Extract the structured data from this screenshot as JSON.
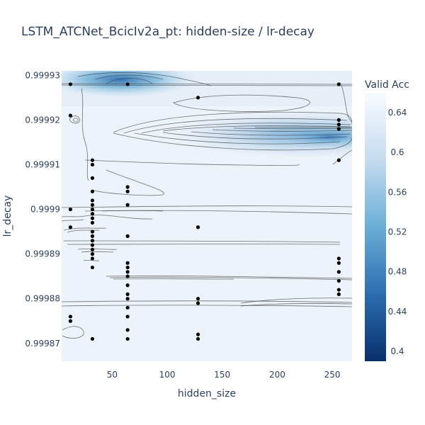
{
  "chart_data": {
    "type": "contour",
    "title": "LSTM_ATCNet_BcicIv2a_pt: hidden-size / lr-decay",
    "xlabel": "hidden_size",
    "ylabel": "lr_decay",
    "colorbar_title": "Valid Acc",
    "xlim": [
      4,
      268
    ],
    "ylim": [
      0.999866,
      0.999931
    ],
    "x_ticks": [
      50,
      100,
      150,
      200,
      250
    ],
    "y_ticks": [
      0.99987,
      0.99988,
      0.99989,
      0.9999,
      0.99991,
      0.99992,
      0.99993
    ],
    "y_tick_labels": [
      "0.99987",
      "0.99988",
      "0.99989",
      "0.9999",
      "0.99991",
      "0.99992",
      "0.99993"
    ],
    "colorbar_range": [
      0.39,
      0.66
    ],
    "colorbar_ticks": [
      0.4,
      0.44,
      0.48,
      0.52,
      0.56,
      0.6,
      0.64
    ],
    "colorscale": [
      "#08306b",
      "#2c6eb0",
      "#6aaed6",
      "#c6dbef",
      "#f7fbff"
    ],
    "grid": false,
    "points": [
      {
        "x": 12,
        "y": 0.999928
      },
      {
        "x": 12,
        "y": 0.999921
      },
      {
        "x": 12,
        "y": 0.9999
      },
      {
        "x": 12,
        "y": 0.999896
      },
      {
        "x": 12,
        "y": 0.999876
      },
      {
        "x": 12,
        "y": 0.999875
      },
      {
        "x": 32,
        "y": 0.999911
      },
      {
        "x": 32,
        "y": 0.99991
      },
      {
        "x": 32,
        "y": 0.999907
      },
      {
        "x": 32,
        "y": 0.999904
      },
      {
        "x": 32,
        "y": 0.999902
      },
      {
        "x": 32,
        "y": 0.999901
      },
      {
        "x": 32,
        "y": 0.9999
      },
      {
        "x": 32,
        "y": 0.999899
      },
      {
        "x": 32,
        "y": 0.999898
      },
      {
        "x": 32,
        "y": 0.999897
      },
      {
        "x": 32,
        "y": 0.999895
      },
      {
        "x": 32,
        "y": 0.999894
      },
      {
        "x": 32,
        "y": 0.999893
      },
      {
        "x": 32,
        "y": 0.999892
      },
      {
        "x": 32,
        "y": 0.999891
      },
      {
        "x": 32,
        "y": 0.99989
      },
      {
        "x": 32,
        "y": 0.999889
      },
      {
        "x": 32,
        "y": 0.999887
      },
      {
        "x": 32,
        "y": 0.999871
      },
      {
        "x": 64,
        "y": 0.999928
      },
      {
        "x": 64,
        "y": 0.999905
      },
      {
        "x": 64,
        "y": 0.999904
      },
      {
        "x": 64,
        "y": 0.999901
      },
      {
        "x": 64,
        "y": 0.999894
      },
      {
        "x": 64,
        "y": 0.999888
      },
      {
        "x": 64,
        "y": 0.999887
      },
      {
        "x": 64,
        "y": 0.999886
      },
      {
        "x": 64,
        "y": 0.999885
      },
      {
        "x": 64,
        "y": 0.999883
      },
      {
        "x": 64,
        "y": 0.999881
      },
      {
        "x": 64,
        "y": 0.99988
      },
      {
        "x": 64,
        "y": 0.999878
      },
      {
        "x": 64,
        "y": 0.999876
      },
      {
        "x": 64,
        "y": 0.999873
      },
      {
        "x": 64,
        "y": 0.999871
      },
      {
        "x": 128,
        "y": 0.999925
      },
      {
        "x": 128,
        "y": 0.999896
      },
      {
        "x": 128,
        "y": 0.99988
      },
      {
        "x": 128,
        "y": 0.999879
      },
      {
        "x": 128,
        "y": 0.999872
      },
      {
        "x": 128,
        "y": 0.999871
      },
      {
        "x": 256,
        "y": 0.999928
      },
      {
        "x": 256,
        "y": 0.99992
      },
      {
        "x": 256,
        "y": 0.999919
      },
      {
        "x": 256,
        "y": 0.999918
      },
      {
        "x": 256,
        "y": 0.999911
      },
      {
        "x": 256,
        "y": 0.999889
      },
      {
        "x": 256,
        "y": 0.999888
      },
      {
        "x": 256,
        "y": 0.999886
      },
      {
        "x": 256,
        "y": 0.999884
      },
      {
        "x": 256,
        "y": 0.999882
      },
      {
        "x": 256,
        "y": 0.999881
      }
    ]
  }
}
